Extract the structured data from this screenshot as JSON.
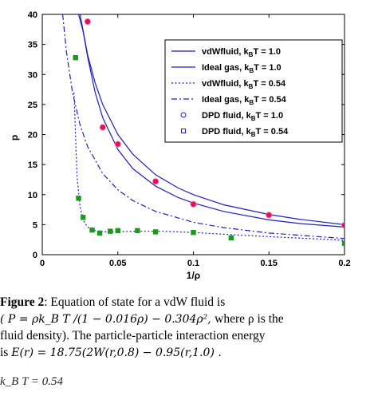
{
  "chart_data": {
    "type": "line",
    "xlabel": "1/ρ",
    "ylabel": "p",
    "xlim": [
      0,
      0.2
    ],
    "ylim": [
      0,
      40
    ],
    "xticks": [
      "0",
      "0.05",
      "0.1",
      "0.15",
      "0.2"
    ],
    "xtick_values": [
      0,
      0.05,
      0.1,
      0.15,
      0.2
    ],
    "yticks": [
      "0",
      "5",
      "10",
      "15",
      "20",
      "25",
      "30",
      "35",
      "40"
    ],
    "ytick_values": [
      0,
      5,
      10,
      15,
      20,
      25,
      30,
      35,
      40
    ],
    "grid": false,
    "legend_position": "top-right",
    "series": [
      {
        "name": "vdWfluid, kBT = 1.0",
        "style": "solid",
        "color": "#1f1fbf",
        "x": [
          0.024,
          0.027,
          0.03,
          0.035,
          0.04,
          0.05,
          0.06,
          0.075,
          0.09,
          0.1,
          0.12,
          0.15,
          0.17,
          0.2
        ],
        "y": [
          40.0,
          37.2,
          33.0,
          27.0,
          22.8,
          17.5,
          14.3,
          11.4,
          9.5,
          8.6,
          7.2,
          5.8,
          5.2,
          4.6
        ]
      },
      {
        "name": "Ideal gas, kBT = 1.0",
        "style": "solid",
        "color": "#1f1fbf",
        "x": [
          0.025,
          0.03,
          0.035,
          0.04,
          0.05,
          0.06,
          0.075,
          0.09,
          0.1,
          0.12,
          0.15,
          0.17,
          0.2
        ],
        "y": [
          40.0,
          33.3,
          28.6,
          25.0,
          20.0,
          16.7,
          13.3,
          11.1,
          10.0,
          8.3,
          6.7,
          5.9,
          5.0
        ]
      },
      {
        "name": "vdWfluid, kBT = 0.54",
        "style": "dotted",
        "color": "#1f1fbf",
        "x": [
          0.021,
          0.022,
          0.023,
          0.025,
          0.027,
          0.03,
          0.035,
          0.04,
          0.05,
          0.06,
          0.08,
          0.1,
          0.12,
          0.15,
          0.2
        ],
        "y": [
          27.0,
          20.0,
          13.0,
          8.0,
          5.8,
          4.6,
          4.0,
          3.8,
          3.8,
          3.9,
          3.9,
          3.7,
          3.4,
          3.0,
          2.4
        ]
      },
      {
        "name": "Ideal gas, kBT = 0.54",
        "style": "dashdot",
        "color": "#1f1fbf",
        "x": [
          0.0135,
          0.016,
          0.02,
          0.025,
          0.03,
          0.04,
          0.05,
          0.06,
          0.075,
          0.1,
          0.12,
          0.15,
          0.2
        ],
        "y": [
          40.0,
          33.8,
          27.0,
          21.6,
          18.0,
          13.5,
          10.8,
          9.0,
          7.2,
          5.4,
          4.5,
          3.6,
          2.7
        ]
      },
      {
        "name": "DPD fluid, kBT = 1.0",
        "style": "marker-circle",
        "color": "#e0105a",
        "x": [
          0.03,
          0.04,
          0.05,
          0.075,
          0.1,
          0.15,
          0.2
        ],
        "y": [
          38.8,
          21.2,
          18.4,
          12.2,
          8.4,
          6.6,
          4.9
        ]
      },
      {
        "name": "DPD fluid, kBT = 0.54",
        "style": "marker-square",
        "color": "#1a9a1a",
        "x": [
          0.022,
          0.024,
          0.027,
          0.033,
          0.038,
          0.045,
          0.05,
          0.063,
          0.075,
          0.1,
          0.125,
          0.2
        ],
        "y": [
          32.8,
          9.4,
          6.2,
          4.1,
          3.6,
          3.9,
          4.0,
          4.0,
          3.8,
          3.7,
          2.8,
          1.9
        ]
      }
    ]
  },
  "legend": {
    "entries": [
      {
        "label": "vdWfluid, k",
        "sub": "B",
        "tail": "T = 1.0",
        "style": "solid"
      },
      {
        "label": "Ideal gas, k",
        "sub": "B",
        "tail": "T = 1.0",
        "style": "solid"
      },
      {
        "label": "vdWfluid, k",
        "sub": "B",
        "tail": "T = 0.54",
        "style": "dotted"
      },
      {
        "label": "Ideal gas, k",
        "sub": "B",
        "tail": "T = 0.54",
        "style": "dashdot"
      },
      {
        "label": "DPD fluid, k",
        "sub": "B",
        "tail": "T = 1.0",
        "style": "marker-circle"
      },
      {
        "label": "DPD fluid, k",
        "sub": "B",
        "tail": "T = 0.54",
        "style": "marker-square"
      }
    ]
  },
  "caption": {
    "figure_label": "Figure 2",
    "line1_rest": ": Equation of state for a vdW fluid is",
    "line2_eq": "( P = ρk_B T /(1 − 0.016ρ) − 0.304ρ², ",
    "line2_rest": "where ρ  is the",
    "line3": "fluid density). The particle-particle interaction energy",
    "line4_pre": "is ",
    "line4_eq": "E(r) = 18.75(2W(r,0.8) − 0.95(r,1.0) .",
    "cutoff": "k_B T = 0.54"
  }
}
